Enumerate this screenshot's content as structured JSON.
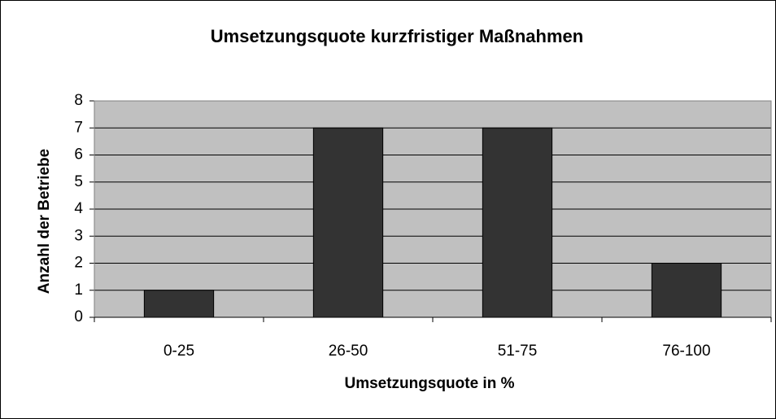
{
  "chart_data": {
    "type": "bar",
    "title": "Umsetzungsquote kurzfristiger Maßnahmen",
    "x_label": "Umsetzungsquote in %",
    "y_label": "Anzahl der Betriebe",
    "categories": [
      "0-25",
      "26-50",
      "51-75",
      "76-100"
    ],
    "values": [
      1,
      7,
      7,
      2
    ],
    "color": "#333333",
    "ylim": [
      0,
      8
    ],
    "yticks": [
      0,
      1,
      2,
      3,
      4,
      5,
      6,
      7,
      8
    ],
    "grid": true
  }
}
